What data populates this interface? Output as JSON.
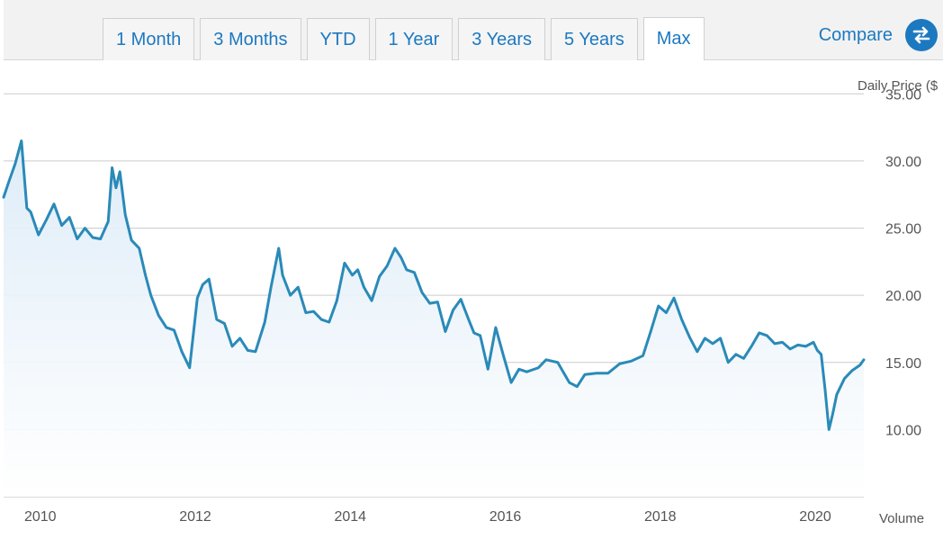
{
  "tabs": [
    {
      "label": "1 Month",
      "active": false
    },
    {
      "label": "3 Months",
      "active": false
    },
    {
      "label": "YTD",
      "active": false
    },
    {
      "label": "1 Year",
      "active": false
    },
    {
      "label": "3 Years",
      "active": false
    },
    {
      "label": "5 Years",
      "active": false
    },
    {
      "label": "Max",
      "active": true
    }
  ],
  "compare_label": "Compare",
  "compare_icon": "swap-arrows-icon",
  "colors": {
    "accent": "#1c79c0",
    "line": "#2a8ab8",
    "fill_top": "#dcebf7",
    "grid": "#cccccc"
  },
  "chart_data": {
    "type": "area",
    "ylabel": "Daily Price ($",
    "volume_label": "Volume",
    "ylim": [
      5,
      37.5
    ],
    "y_ticks": [
      "35.00",
      "30.00",
      "25.00",
      "20.00",
      "15.00",
      "10.00"
    ],
    "y_tick_values": [
      35,
      30,
      25,
      20,
      15,
      10
    ],
    "x_tick_labels": [
      "2010",
      "2012",
      "2014",
      "2016",
      "2018",
      "2020"
    ],
    "x_tick_values": [
      2010,
      2012,
      2014,
      2016,
      2018,
      2020
    ],
    "xlim": [
      2009.55,
      2020.65
    ],
    "grid": true,
    "series": [
      {
        "values_x": [
          2009.55,
          2009.62,
          2009.7,
          2009.78,
          2009.85,
          2009.9,
          2010.0,
          2010.1,
          2010.2,
          2010.3,
          2010.4,
          2010.5,
          2010.6,
          2010.7,
          2010.8,
          2010.9,
          2010.95,
          2011.0,
          2011.05,
          2011.12,
          2011.2,
          2011.3,
          2011.38,
          2011.45,
          2011.55,
          2011.65,
          2011.75,
          2011.85,
          2011.95,
          2012.0,
          2012.05,
          2012.12,
          2012.2,
          2012.3,
          2012.4,
          2012.5,
          2012.6,
          2012.7,
          2012.8,
          2012.92,
          2013.0,
          2013.1,
          2013.15,
          2013.25,
          2013.35,
          2013.45,
          2013.55,
          2013.65,
          2013.75,
          2013.85,
          2013.95,
          2014.05,
          2014.12,
          2014.2,
          2014.3,
          2014.4,
          2014.5,
          2014.6,
          2014.68,
          2014.75,
          2014.85,
          2014.95,
          2015.05,
          2015.15,
          2015.25,
          2015.35,
          2015.45,
          2015.55,
          2015.62,
          2015.7,
          2015.8,
          2015.9,
          2016.0,
          2016.1,
          2016.2,
          2016.3,
          2016.45,
          2016.55,
          2016.7,
          2016.85,
          2016.95,
          2017.05,
          2017.2,
          2017.35,
          2017.5,
          2017.65,
          2017.8,
          2017.9,
          2018.0,
          2018.1,
          2018.2,
          2018.3,
          2018.4,
          2018.5,
          2018.6,
          2018.7,
          2018.8,
          2018.9,
          2019.0,
          2019.1,
          2019.2,
          2019.3,
          2019.4,
          2019.5,
          2019.6,
          2019.7,
          2019.8,
          2019.9,
          2020.0,
          2020.05,
          2020.1,
          2020.15,
          2020.2,
          2020.25,
          2020.3,
          2020.4,
          2020.5,
          2020.6,
          2020.65
        ],
        "values_y": [
          27.3,
          28.5,
          29.8,
          31.5,
          26.5,
          26.2,
          24.5,
          25.6,
          26.8,
          25.2,
          25.8,
          24.2,
          25.0,
          24.3,
          24.2,
          25.5,
          29.5,
          28.0,
          29.2,
          26.0,
          24.1,
          23.5,
          21.5,
          20.0,
          18.5,
          17.6,
          17.4,
          15.8,
          14.6,
          17.2,
          19.8,
          20.8,
          21.2,
          18.2,
          17.9,
          16.2,
          16.8,
          15.9,
          15.8,
          18.0,
          20.6,
          23.5,
          21.5,
          20.0,
          20.6,
          18.7,
          18.8,
          18.2,
          18.0,
          19.6,
          22.4,
          21.5,
          21.9,
          20.6,
          19.6,
          21.4,
          22.2,
          23.5,
          22.8,
          21.9,
          21.7,
          20.2,
          19.4,
          19.5,
          17.3,
          18.9,
          19.7,
          18.2,
          17.2,
          17.0,
          14.5,
          17.6,
          15.5,
          13.5,
          14.5,
          14.3,
          14.6,
          15.2,
          15.0,
          13.5,
          13.2,
          14.1,
          14.2,
          14.2,
          14.9,
          15.1,
          15.5,
          17.3,
          19.2,
          18.7,
          19.8,
          18.2,
          16.9,
          15.8,
          16.8,
          16.4,
          16.8,
          15.0,
          15.6,
          15.3,
          16.2,
          17.2,
          17.0,
          16.4,
          16.5,
          16.0,
          16.3,
          16.2,
          16.5,
          15.9,
          15.6,
          13.0,
          10.0,
          11.2,
          12.6,
          13.8,
          14.4,
          14.8,
          15.2
        ]
      }
    ]
  }
}
